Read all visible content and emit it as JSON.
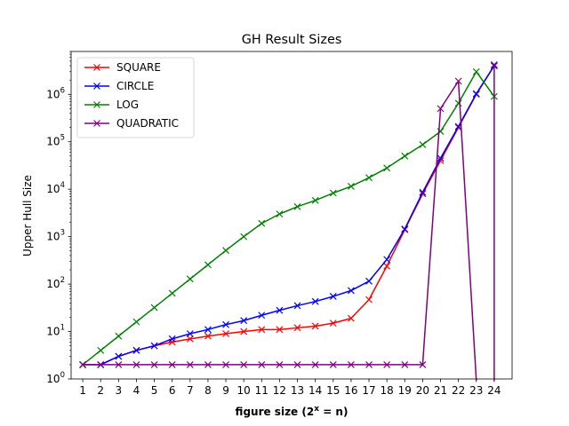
{
  "chart_data": {
    "type": "line",
    "title": "GH Result Sizes",
    "xlabel": "figure size (2",
    "xlabel_sup": "x",
    "xlabel_tail": " = n)",
    "ylabel": "Upper Hull Size",
    "yscale": "log",
    "ylim": [
      1,
      8000000
    ],
    "xlim": [
      0.35,
      25.0
    ],
    "x": [
      1,
      2,
      3,
      4,
      5,
      6,
      7,
      8,
      9,
      10,
      11,
      12,
      13,
      14,
      15,
      16,
      17,
      18,
      19,
      20,
      21,
      22,
      23,
      24
    ],
    "y_ticks": [
      {
        "value": 1,
        "base": "10",
        "exp": "0"
      },
      {
        "value": 10,
        "base": "10",
        "exp": "1"
      },
      {
        "value": 100,
        "base": "10",
        "exp": "2"
      },
      {
        "value": 1000,
        "base": "10",
        "exp": "3"
      },
      {
        "value": 10000,
        "base": "10",
        "exp": "4"
      },
      {
        "value": 100000,
        "base": "10",
        "exp": "5"
      },
      {
        "value": 1000000,
        "base": "10",
        "exp": "6"
      }
    ],
    "legend_position": "upper-left",
    "marker": "x",
    "series": [
      {
        "name": "SQUARE",
        "color": "#ff0000",
        "values": [
          2,
          2,
          3,
          4,
          5,
          6,
          7,
          8,
          9,
          10,
          11,
          11,
          12,
          13,
          15,
          19,
          47,
          240,
          1400,
          8000,
          40000,
          200000,
          1000000,
          4000000
        ]
      },
      {
        "name": "CIRCLE",
        "color": "#0000ff",
        "values": [
          2,
          2,
          3,
          4,
          5,
          7,
          9,
          11,
          14,
          17,
          22,
          28,
          35,
          43,
          55,
          73,
          115,
          330,
          1450,
          8600,
          45000,
          210000,
          1030000,
          4000000
        ]
      },
      {
        "name": "LOG",
        "color": "#008000",
        "values": [
          2,
          4,
          8,
          16,
          32,
          64,
          128,
          256,
          512,
          1000,
          1900,
          3000,
          4300,
          5800,
          8300,
          11500,
          17500,
          28000,
          50000,
          87000,
          165000,
          650000,
          3000000,
          900000
        ]
      },
      {
        "name": "QUADRATIC",
        "color": "#800080",
        "values": [
          2,
          2,
          2,
          2,
          2,
          2,
          2,
          2,
          2,
          2,
          2,
          2,
          2,
          2,
          2,
          2,
          2,
          2,
          2,
          2,
          500000,
          1900000,
          null,
          4200000
        ]
      }
    ]
  }
}
